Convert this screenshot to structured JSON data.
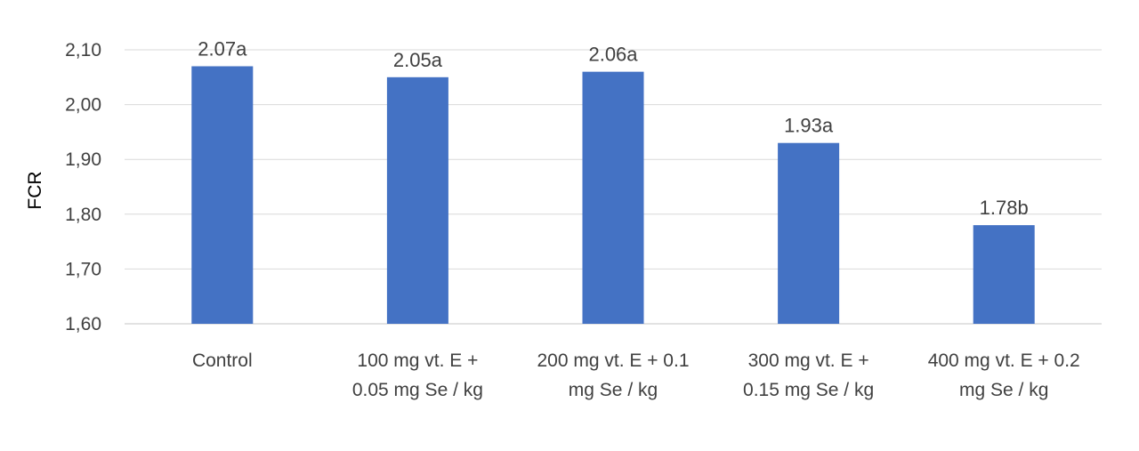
{
  "chart_data": {
    "type": "bar",
    "title": "",
    "xlabel": "",
    "ylabel": "FCR",
    "ylim": [
      1.6,
      2.1
    ],
    "yticks": [
      "1,60",
      "1,70",
      "1,80",
      "1,90",
      "2,00",
      "2,10"
    ],
    "grid": true,
    "legend": "none",
    "categories": [
      [
        "Control"
      ],
      [
        "100 mg vt. E +",
        "0.05 mg Se / kg"
      ],
      [
        "200 mg vt. E + 0.1",
        "mg Se / kg"
      ],
      [
        "300 mg vt. E +",
        "0.15 mg Se / kg"
      ],
      [
        "400 mg vt. E + 0.2",
        "mg Se / kg"
      ]
    ],
    "values": [
      2.07,
      2.05,
      2.06,
      1.93,
      1.78
    ],
    "data_labels": [
      "2.07a",
      "2.05a",
      "2.06a",
      "1.93a",
      "1.78b"
    ],
    "colors": {
      "bar": "#4472C4",
      "grid": "#D9D9D9",
      "text": "#404040"
    }
  }
}
